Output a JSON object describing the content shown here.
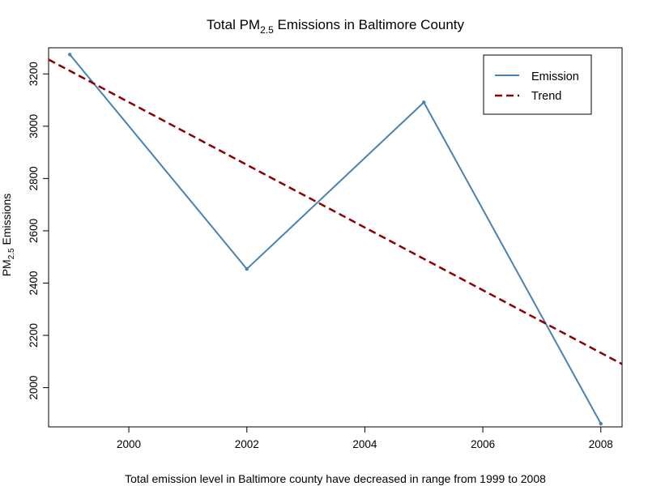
{
  "chart_data": {
    "type": "line",
    "title_parts": {
      "prefix": "Total  PM",
      "subscript": "2.5",
      "suffix": "  Emissions in Baltimore County"
    },
    "ylabel_parts": {
      "prefix": "PM",
      "subscript": "2.5",
      "suffix": " Emissions"
    },
    "xlabel": "Total emission level in Baltimore county have decreased in range from 1999 to 2008",
    "xlim": [
      1998.64,
      2008.36
    ],
    "ylim": [
      1850,
      3300
    ],
    "x_ticks": [
      2000,
      2002,
      2004,
      2006,
      2008
    ],
    "y_ticks": [
      2000,
      2200,
      2400,
      2600,
      2800,
      3000,
      3200
    ],
    "series": [
      {
        "name": "Emission",
        "color": "#4682b4",
        "line_style": "solid",
        "x": [
          1999,
          2002,
          2005,
          2008
        ],
        "y": [
          3274.18,
          2453.92,
          3091.35,
          1862.28
        ]
      },
      {
        "name": "Trend",
        "color": "#8b0000",
        "line_style": "dashed",
        "x": [
          1998.64,
          2008.36
        ],
        "y": [
          3255,
          2090
        ]
      }
    ],
    "legend_position": "top-right",
    "grid": false
  }
}
